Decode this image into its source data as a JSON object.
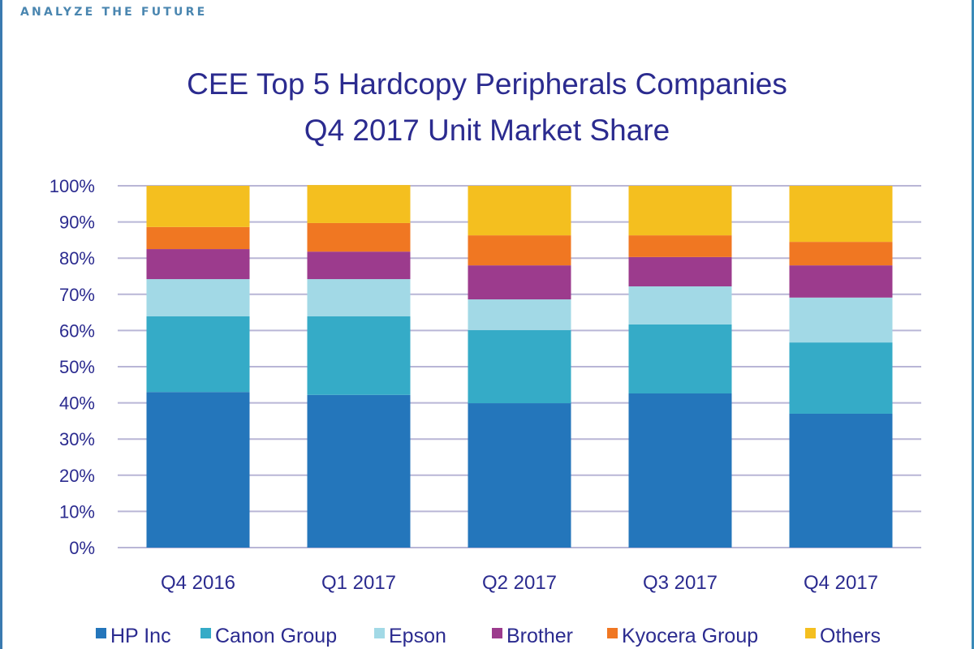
{
  "tagline": "ANALYZE THE FUTURE",
  "chart_data": {
    "type": "bar",
    "stacked": true,
    "title": "CEE Top 5 Hardcopy Peripherals Companies",
    "subtitle": "Q4 2017 Unit Market Share",
    "xlabel": "",
    "ylabel": "",
    "ylim": [
      0,
      100
    ],
    "yticks": [
      "0%",
      "10%",
      "20%",
      "30%",
      "40%",
      "50%",
      "60%",
      "70%",
      "80%",
      "90%",
      "100%"
    ],
    "grid": true,
    "legend_position": "bottom",
    "categories": [
      "Q4 2016",
      "Q1 2017",
      "Q2 2017",
      "Q3 2017",
      "Q4 2017"
    ],
    "series": [
      {
        "name": "HP Inc",
        "color": "#2476bb",
        "values": [
          43.0,
          42.2,
          39.9,
          42.6,
          37.0
        ]
      },
      {
        "name": "Canon Group",
        "color": "#35abc7",
        "values": [
          20.9,
          21.7,
          20.2,
          19.1,
          19.7
        ]
      },
      {
        "name": "Epson",
        "color": "#a2d9e6",
        "values": [
          10.3,
          10.3,
          8.5,
          10.5,
          12.4
        ]
      },
      {
        "name": "Brother",
        "color": "#9c3b8d",
        "values": [
          8.3,
          7.6,
          9.4,
          8.1,
          8.9
        ]
      },
      {
        "name": "Kyocera Group",
        "color": "#f07722",
        "values": [
          6.1,
          7.9,
          8.3,
          6.0,
          6.5
        ]
      },
      {
        "name": "Others",
        "color": "#f4bf1f",
        "values": [
          11.4,
          10.5,
          13.7,
          13.7,
          15.5
        ]
      }
    ]
  }
}
